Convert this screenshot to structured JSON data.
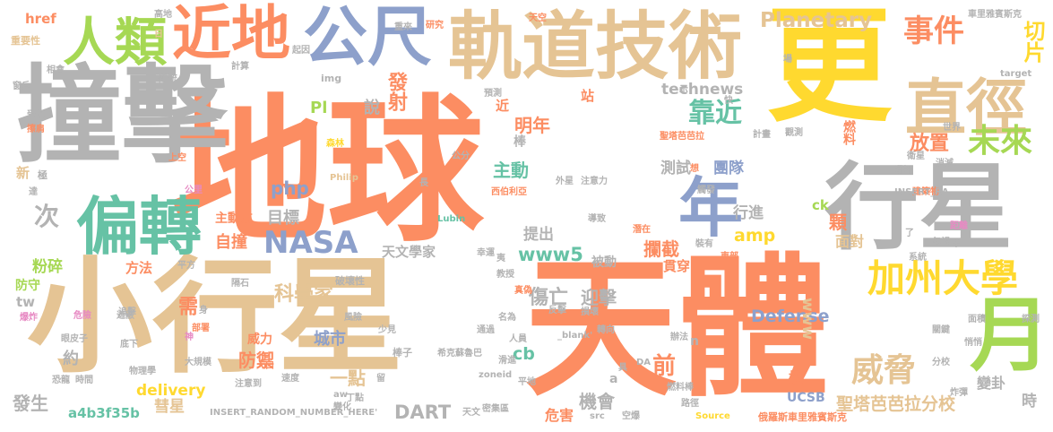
{
  "colors": {
    "orange": "#fc8d62",
    "gray": "#b3b3b3",
    "tan": "#e5c494",
    "yellow": "#ffd92f",
    "green": "#a6d854",
    "blue": "#8da0cb",
    "teal": "#66c2a5",
    "pink": "#e78ac3"
  },
  "words": {
    "diqiu": "地球",
    "zhuangji": "撞擊",
    "xiaoxingxing": "小行星",
    "tianti": "天體",
    "geng": "更",
    "xingxing": "行星",
    "guidaojishu": "軌道技術",
    "gongchi": "公尺",
    "jindi": "近地",
    "zhijing": "直徑",
    "renlei": "人類",
    "pianzhuan": "偏轉",
    "nian": "年",
    "yue": "月",
    "nasa": "NASA",
    "jiazhoudaxue": "加州大學",
    "weixie": "威脅",
    "shijian": "事件",
    "kaojin": "靠近",
    "weilai": "未來",
    "planetary": "Planetary",
    "technews": "technews",
    "qiepian": "切片",
    "fashe": "發射",
    "shuo": "說",
    "ci": "次",
    "php": "php",
    "pl": "Pl",
    "amp": "amp",
    "www5": "www5",
    "defense": "Defense",
    "www": "www",
    "cb": "cb",
    "dart": "DART",
    "delivery": "delivery",
    "kexuejia": "科學家",
    "tianwenxuejia": "天文學家",
    "mubiao": "目標",
    "zizhuang": "自撞",
    "zhudongfang": "主動方",
    "zhudong": "主動",
    "mingnian": "明年",
    "jin": "近",
    "ceshi": "測試",
    "tuandui": "團隊",
    "fangzhi": "放置",
    "xingjin": "行進",
    "lanjie": "攔截",
    "tichu": "提出",
    "shangwang": "傷亡",
    "yingji": "迎擊",
    "fangyu": "防禦",
    "chengshi": "城市",
    "weili": "威力",
    "yidian": "一點",
    "jihui": "機會",
    "weihai": "危害",
    "huixing": "彗星",
    "fasheng": "發生",
    "a4b3f35b": "a4b3f35b",
    "fensui": "粉碎",
    "fangfa": "方法",
    "fangshou": "防守",
    "tw": "tw",
    "xu": "需",
    "yue2": "約",
    "qian": "前",
    "shengtabablafenxiao": "聖塔芭芭拉分校",
    "mianli": "面對",
    "guanchuan": "貫穿",
    "ucsb": "UCSB",
    "pu": "撲",
    "bianmai": "變卦",
    "shi": "時",
    "ranliao": "燃料",
    "ke": "顆",
    "ck": "ck",
    "zhan": "站",
    "bang": "棒",
    "beidong": "被動",
    "href": "href",
    "gaodi": "高地",
    "zhongyaoxing": "重要性",
    "ri": "日",
    "chonglai": "重來",
    "yanjiu": "研究",
    "tiankong": "天空",
    "cheliyabinsike": "車里雅賓斯克",
    "qiyin": "起因",
    "jisuan": "計算",
    "chuantong": "傳統",
    "xiangcha": "相會",
    "chuanghu": "窗戶",
    "shoushang": "受傷",
    "mosun": "擦肩",
    "img": "img",
    "yuce": "預測",
    "xin": "新",
    "ji": "極",
    "dao": "達",
    "zhuiji": "追擊",
    "shangkong": "上空",
    "senlin": "森林",
    "gongli": "公里",
    "philip": "Philip",
    "lubin": "Lubin",
    "chang": "長",
    "gongfen": "公分",
    "xiboliya": "西伯利亞",
    "waixing": "外星",
    "zhuyili": "注意力",
    "huan": "換",
    "daozhi": "導致",
    "qianzai": "潛在",
    "zhuangyou": "裝有",
    "dongbu": "東部",
    "shijie": "世界",
    "xitong": "系統",
    "xiaomie": "消滅",
    "jianzhuwu": "建築物",
    "juli": "距離",
    "hulue": "忽視",
    "qian2": "千",
    "tongxun": "通訊",
    "weixing": "衛星",
    "guance": "觀測",
    "jihua": "計畫",
    "shengtabablafenxiao2": "聖塔芭芭拉",
    "ruifa": "觸發",
    "xiang": "想",
    "insert_ra": "INSERT_RA",
    "target": "target",
    "kuai": "快",
    "shi2": "示",
    "chang2": "場",
    "le": "了",
    "xishao": "稀少",
    "pingfang": "平方",
    "geshi": "隔石",
    "pohuaixing": "破壞性",
    "weixian": "危險",
    "baozha": "爆炸",
    "zhebi": "遮蔽",
    "shen": "身",
    "buju": "部署",
    "fengxian": "風險",
    "mingwei": "名為",
    "fanying": "反擊",
    "yanpizi": "眼皮子",
    "dixia": "底下",
    "shen2": "神",
    "kongju": "恐龍",
    "shijian2": "時間",
    "wulixue": "物理學",
    "daguimo": "大規模",
    "renkou": "人口",
    "zhuyidao": "注意到",
    "sudu": "速度",
    "shaojian": "少見",
    "tongguo": "通過",
    "jiaoshou": "教授",
    "xiaeyo": "夷",
    "xingyun": "幸運",
    "zhenwei": "真偽",
    "xikesuluba": "希克蘇魯巴",
    "huapo": "滑進",
    "bangzi": "棒子",
    "zhuanxiang": "轉向",
    "renyuan": "人員",
    "blank": "_blank'",
    "sunhuai": "損壞",
    "banfa": "辦法",
    "shuanghuai": "雙壞",
    "dangzhe": "當者",
    "zoneid": "zoneid",
    "aw": "aw",
    "bianhua": "變化",
    "liu": "留",
    "dingdian": "丁點",
    "insert_random": "INSERT_RANDOM_NUMBER_HERE'",
    "tianwen": "天文",
    "mijiqu": "密集區",
    "pingdi": "平地",
    "src": "src",
    "kongyuan": "空爆",
    "ranliaobang": "燃料棒",
    "source": "Source",
    "lujing": "路徑",
    "eluosicheliya": "俄羅斯車里雅賓斯克",
    "da": "DA",
    "ju": "具",
    "a": "a",
    "n": "n",
    "mianji": "面積",
    "guanjian": "關鍵",
    "qiaoqiao": "悄悄",
    "fenxiao": "分校",
    "tance": "探測",
    "zhadan": "炸彈"
  }
}
